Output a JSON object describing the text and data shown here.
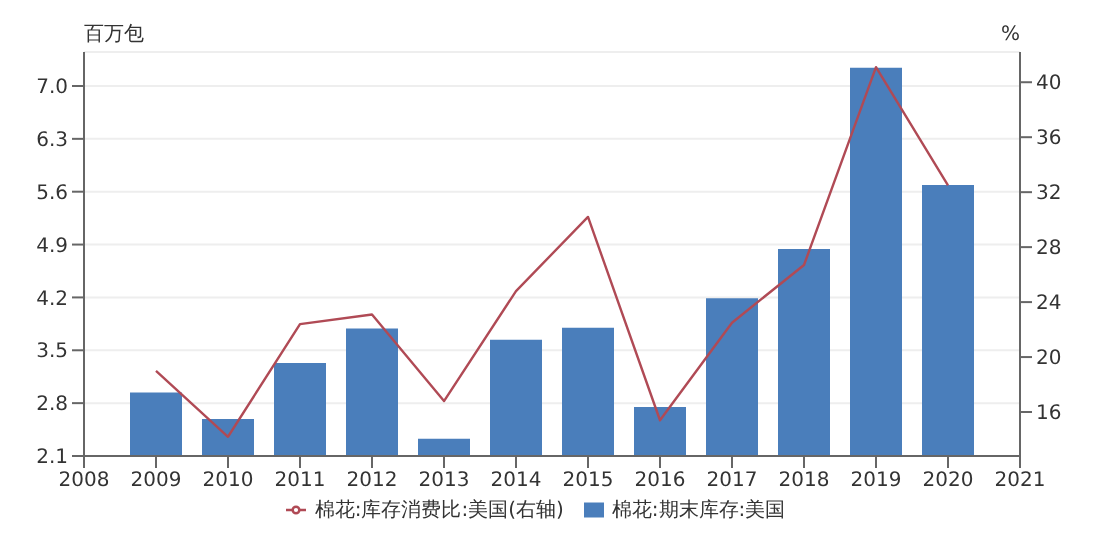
{
  "chart_data": {
    "type": "bar",
    "x": [
      2009,
      2010,
      2011,
      2012,
      2013,
      2014,
      2015,
      2016,
      2017,
      2018,
      2019,
      2020
    ],
    "series": [
      {
        "name": "棉花:库存消费比:美国(右轴)",
        "type": "line",
        "axis": "y2",
        "color": "#b04a55",
        "values": [
          19.0,
          14.2,
          22.4,
          23.1,
          16.8,
          24.8,
          30.2,
          15.4,
          22.5,
          26.7,
          41.1,
          32.5
        ]
      },
      {
        "name": "棉花:期末库存:美国",
        "color": "#4a7ebb",
        "values": [
          2.94,
          2.59,
          3.33,
          3.79,
          2.33,
          3.64,
          3.8,
          2.75,
          4.19,
          4.84,
          7.24,
          5.69
        ]
      }
    ],
    "ylabel": "百万包",
    "y2label": "%",
    "xlim": [
      2008,
      2021
    ],
    "xticks": [
      2008,
      2009,
      2010,
      2011,
      2012,
      2013,
      2014,
      2015,
      2016,
      2017,
      2018,
      2019,
      2020,
      2021
    ],
    "ylim": [
      2.1,
      7.45
    ],
    "yticks": [
      2.1,
      2.8,
      3.5,
      4.2,
      4.9,
      5.6,
      6.3,
      {
        "value": 7,
        "label": "7.0"
      }
    ],
    "y2lim": [
      12.8,
      42.2
    ],
    "y2ticks": [
      16,
      20,
      24,
      28,
      32,
      36,
      40
    ],
    "grid": "y",
    "legend": "bottom"
  }
}
